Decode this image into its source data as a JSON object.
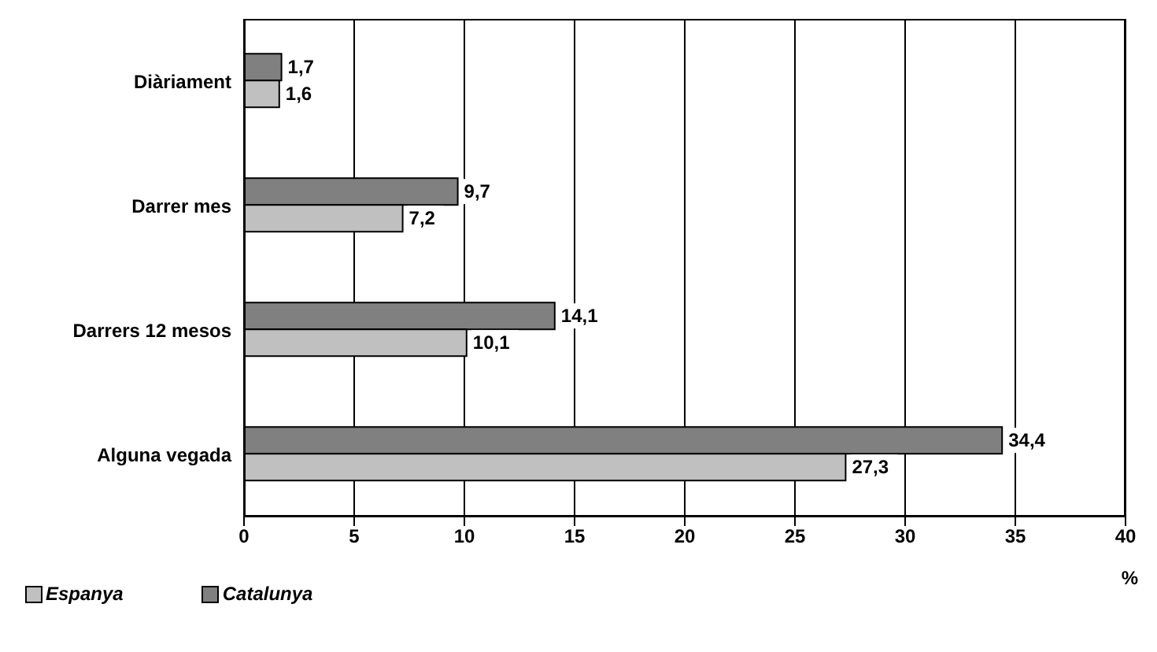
{
  "chart_data": {
    "type": "bar",
    "orientation": "horizontal",
    "categories": [
      "Diàriament",
      "Darrer mes",
      "Darrers 12 mesos",
      "Alguna vegada"
    ],
    "series": [
      {
        "name": "Espanya",
        "color": "#c0c0c0",
        "values": [
          1.6,
          7.2,
          10.1,
          27.3
        ],
        "value_labels": [
          "1,6",
          "7,2",
          "10,1",
          "27,3"
        ]
      },
      {
        "name": "Catalunya",
        "color": "#808080",
        "values": [
          1.7,
          9.7,
          14.1,
          34.4
        ],
        "value_labels": [
          "1,7",
          "9,7",
          "14,1",
          "34,4"
        ]
      }
    ],
    "xlim": [
      0,
      40
    ],
    "xticks": [
      0,
      5,
      10,
      15,
      20,
      25,
      30,
      35,
      40
    ],
    "xlabel": "%",
    "grid": "x",
    "legend": "bottom left"
  }
}
